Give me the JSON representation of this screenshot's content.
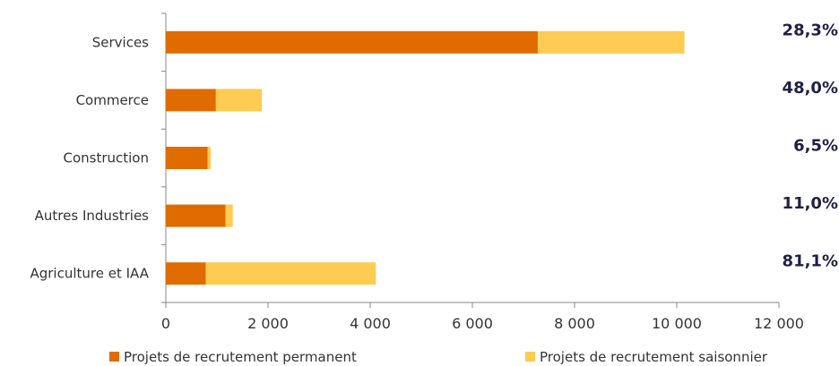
{
  "chart_data": {
    "type": "bar",
    "orientation": "horizontal",
    "stacked": true,
    "categories": [
      "Services",
      "Commerce",
      "Construction",
      "Autres Industries",
      "Agriculture et IAA"
    ],
    "series": [
      {
        "name": "Projets de recrutement permanent",
        "color": "#e06c00",
        "values": [
          7280,
          980,
          820,
          1170,
          780
        ]
      },
      {
        "name": "Projets de recrutement saisonnier",
        "color": "#fecb53",
        "values": [
          2870,
          900,
          60,
          140,
          3330
        ]
      }
    ],
    "share_labels": [
      "28,3%",
      "48,0%",
      "6,5%",
      "11,0%",
      "81,1%"
    ],
    "xlim": [
      0,
      12000
    ],
    "xticks": [
      0,
      2000,
      4000,
      6000,
      8000,
      10000,
      12000
    ],
    "xtick_labels": [
      "0",
      "2 000",
      "4 000",
      "6 000",
      "8 000",
      "10 000",
      "12 000"
    ],
    "grid": false,
    "legend_position": "bottom",
    "label_color": "#1f2044"
  }
}
